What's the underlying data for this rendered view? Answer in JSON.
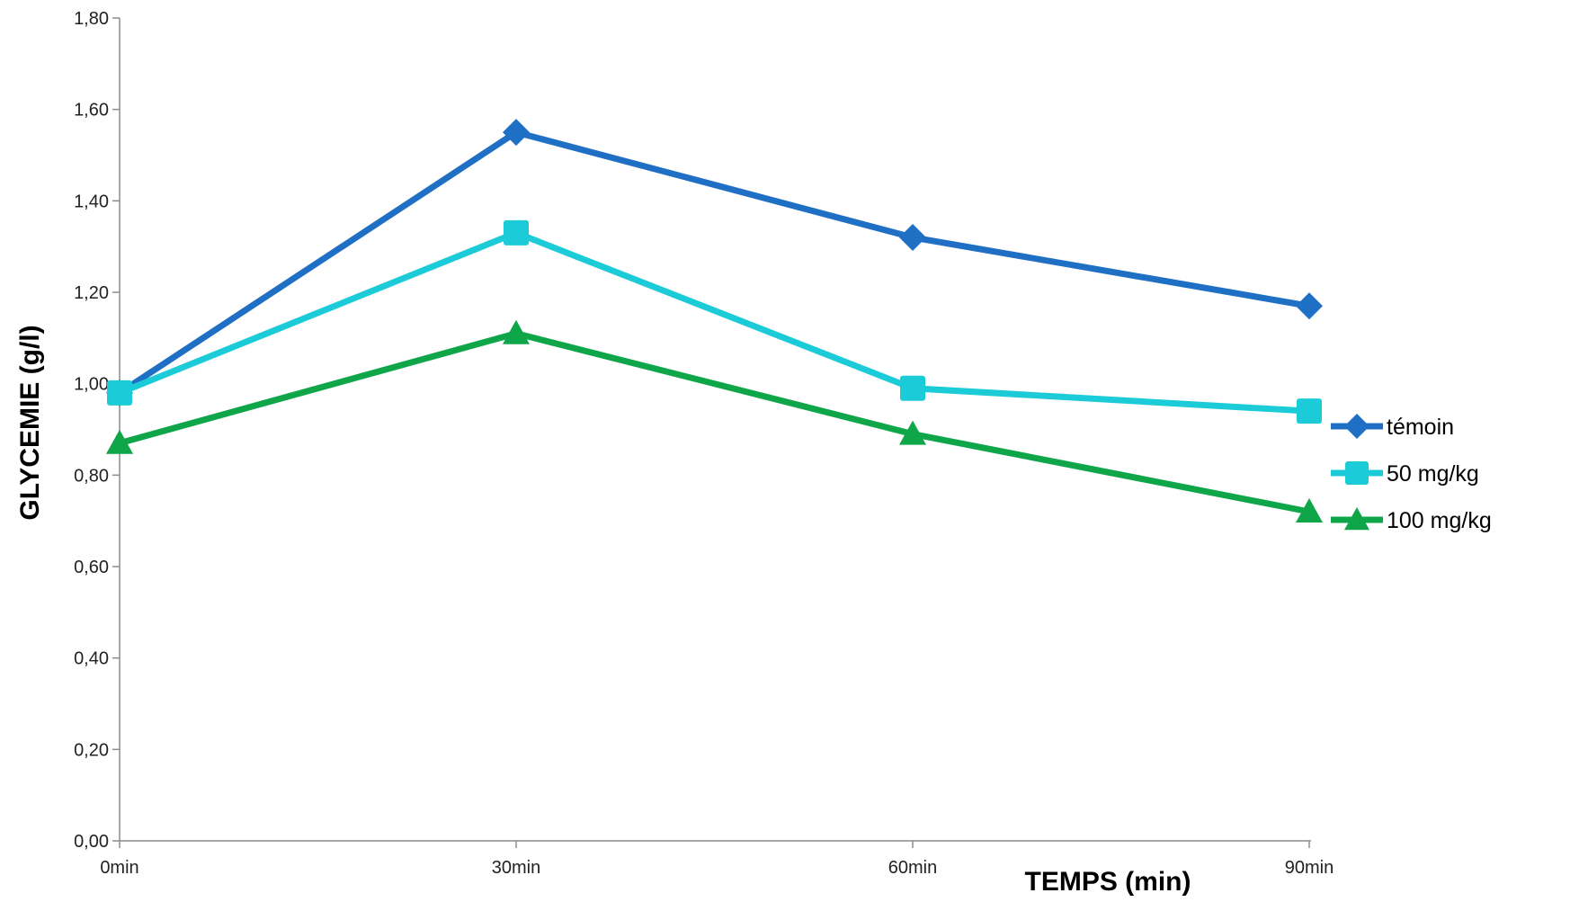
{
  "chart_data": {
    "type": "line",
    "title": "",
    "xlabel": "TEMPS (min)",
    "ylabel": "GLYCEMIE (g/l)",
    "categories": [
      "0min",
      "30min",
      "60min",
      "90min"
    ],
    "ylim": [
      0,
      1.8
    ],
    "ytick_step": 0.2,
    "ytick_labels": [
      "0,00",
      "0,20",
      "0,40",
      "0,60",
      "0,80",
      "1,00",
      "1,20",
      "1,40",
      "1,60",
      "1,80"
    ],
    "grid": false,
    "legend_position": "right",
    "series": [
      {
        "name": "témoin",
        "values": [
          0.98,
          1.55,
          1.32,
          1.17
        ],
        "color": "#1f6fc5",
        "marker": "diamond"
      },
      {
        "name": "50 mg/kg",
        "values": [
          0.98,
          1.33,
          0.99,
          0.94
        ],
        "color": "#1ccbd8",
        "marker": "square"
      },
      {
        "name": "100 mg/kg",
        "values": [
          0.87,
          1.11,
          0.89,
          0.72
        ],
        "color": "#0fa64a",
        "marker": "triangle"
      }
    ]
  }
}
